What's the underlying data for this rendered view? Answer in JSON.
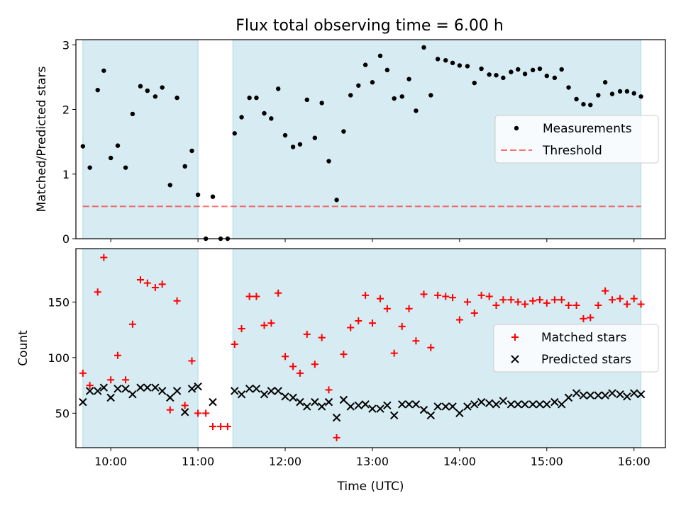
{
  "title": "Flux total observing time = 6.00 h",
  "colors": {
    "band": "#add8e6",
    "measurement": "#000000",
    "threshold": "#ff0000",
    "matched": "#ff0000",
    "predicted": "#000000"
  },
  "chart_data": [
    {
      "type": "scatter",
      "ylabel": "Matched/Predicted stars",
      "ylim": [
        0,
        3.08
      ],
      "yticks": [
        "0",
        "1",
        "2",
        "3"
      ],
      "xlim": [
        9.6,
        16.36
      ],
      "bands": [
        [
          9.68,
          11.0
        ],
        [
          11.4,
          16.08
        ]
      ],
      "legend": {
        "placement": "center-right",
        "entries": [
          "Measurements",
          "Threshold"
        ]
      },
      "threshold": 0.5,
      "series": [
        {
          "name": "Measurements",
          "x": [
            9.68,
            9.76,
            9.85,
            9.92,
            10.0,
            10.08,
            10.17,
            10.25,
            10.34,
            10.42,
            10.51,
            10.59,
            10.68,
            10.76,
            10.85,
            10.93,
            11.0,
            11.09,
            11.17,
            11.26,
            11.34,
            11.42,
            11.5,
            11.59,
            11.67,
            11.76,
            11.84,
            11.92,
            12.0,
            12.09,
            12.17,
            12.25,
            12.34,
            12.42,
            12.5,
            12.59,
            12.67,
            12.75,
            12.84,
            12.92,
            13.0,
            13.09,
            13.17,
            13.25,
            13.34,
            13.42,
            13.5,
            13.59,
            13.67,
            13.75,
            13.84,
            13.92,
            14.0,
            14.09,
            14.17,
            14.25,
            14.34,
            14.42,
            14.5,
            14.59,
            14.67,
            14.75,
            14.84,
            14.92,
            15.0,
            15.09,
            15.17,
            15.25,
            15.34,
            15.42,
            15.5,
            15.59,
            15.67,
            15.75,
            15.84,
            15.92,
            16.0,
            16.08
          ],
          "y": [
            1.43,
            1.1,
            2.3,
            2.6,
            1.25,
            1.44,
            1.1,
            1.93,
            2.36,
            2.29,
            2.2,
            2.34,
            0.83,
            2.18,
            1.12,
            1.36,
            0.68,
            0.0,
            0.65,
            0.0,
            0.0,
            1.63,
            1.88,
            2.18,
            2.18,
            1.94,
            1.86,
            2.32,
            1.6,
            1.42,
            1.46,
            2.15,
            1.56,
            2.1,
            1.2,
            0.6,
            1.66,
            2.22,
            2.37,
            2.69,
            2.42,
            2.83,
            2.61,
            2.17,
            2.2,
            2.47,
            1.98,
            2.96,
            2.22,
            2.78,
            2.76,
            2.72,
            2.68,
            2.67,
            2.41,
            2.63,
            2.54,
            2.53,
            2.49,
            2.58,
            2.62,
            2.55,
            2.61,
            2.63,
            2.52,
            2.49,
            2.62,
            2.34,
            2.16,
            2.08,
            2.07,
            2.22,
            2.42,
            2.24,
            2.28,
            2.28,
            2.25,
            2.2
          ]
        }
      ]
    },
    {
      "type": "scatter",
      "xlabel": "Time (UTC)",
      "ylabel": "Count",
      "ylim": [
        19,
        198
      ],
      "yticks": [
        "50",
        "100",
        "150"
      ],
      "xlim": [
        9.6,
        16.36
      ],
      "xticks": [
        "10:00",
        "11:00",
        "12:00",
        "13:00",
        "14:00",
        "15:00",
        "16:00"
      ],
      "bands": [
        [
          9.68,
          11.0
        ],
        [
          11.4,
          16.08
        ]
      ],
      "legend": {
        "placement": "center-right",
        "entries": [
          "Matched stars",
          "Predicted stars"
        ]
      },
      "series": [
        {
          "name": "Matched stars",
          "x": [
            9.68,
            9.76,
            9.85,
            9.92,
            10.0,
            10.08,
            10.17,
            10.25,
            10.34,
            10.42,
            10.51,
            10.59,
            10.68,
            10.76,
            10.85,
            10.93,
            11.0,
            11.09,
            11.17,
            11.26,
            11.34,
            11.42,
            11.5,
            11.59,
            11.67,
            11.76,
            11.84,
            11.92,
            12.0,
            12.09,
            12.17,
            12.25,
            12.34,
            12.42,
            12.5,
            12.59,
            12.67,
            12.75,
            12.84,
            12.92,
            13.0,
            13.09,
            13.17,
            13.25,
            13.34,
            13.42,
            13.5,
            13.59,
            13.67,
            13.75,
            13.84,
            13.92,
            14.0,
            14.09,
            14.17,
            14.25,
            14.34,
            14.42,
            14.5,
            14.59,
            14.67,
            14.75,
            14.84,
            14.92,
            15.0,
            15.09,
            15.17,
            15.25,
            15.34,
            15.42,
            15.5,
            15.59,
            15.67,
            15.75,
            15.84,
            15.92,
            16.0,
            16.08
          ],
          "y": [
            86,
            75,
            159,
            190,
            80,
            102,
            80,
            130,
            170,
            167,
            163,
            166,
            53,
            151,
            57,
            97,
            50,
            50,
            38,
            38,
            38,
            112,
            126,
            155,
            155,
            129,
            131,
            158,
            101,
            92,
            86,
            121,
            94,
            118,
            71,
            28,
            103,
            127,
            133,
            156,
            131,
            153,
            144,
            104,
            128,
            144,
            115,
            157,
            109,
            156,
            155,
            154,
            134,
            150,
            140,
            156,
            155,
            147,
            152,
            152,
            150,
            148,
            151,
            152,
            149,
            152,
            152,
            147,
            147,
            135,
            136,
            147,
            160,
            152,
            153,
            148,
            153,
            148
          ]
        },
        {
          "name": "Predicted stars",
          "x": [
            9.68,
            9.76,
            9.85,
            9.92,
            10.0,
            10.08,
            10.17,
            10.25,
            10.34,
            10.42,
            10.51,
            10.59,
            10.68,
            10.76,
            10.85,
            10.93,
            11.0,
            11.09,
            11.17,
            11.26,
            11.34,
            11.42,
            11.5,
            11.59,
            11.67,
            11.76,
            11.84,
            11.92,
            12.0,
            12.09,
            12.17,
            12.25,
            12.34,
            12.42,
            12.5,
            12.59,
            12.67,
            12.75,
            12.84,
            12.92,
            13.0,
            13.09,
            13.17,
            13.25,
            13.34,
            13.42,
            13.5,
            13.59,
            13.67,
            13.75,
            13.84,
            13.92,
            14.0,
            14.09,
            14.17,
            14.25,
            14.34,
            14.42,
            14.5,
            14.59,
            14.67,
            14.75,
            14.84,
            14.92,
            15.0,
            15.09,
            15.17,
            15.25,
            15.34,
            15.42,
            15.5,
            15.59,
            15.67,
            15.75,
            15.84,
            15.92,
            16.0,
            16.08
          ],
          "y": [
            60,
            70,
            70,
            73,
            64,
            72,
            72,
            67,
            73,
            73,
            73,
            70,
            64,
            70,
            51,
            72,
            74,
            null,
            60,
            null,
            null,
            70,
            67,
            72,
            72,
            67,
            70,
            70,
            65,
            64,
            60,
            56,
            60,
            56,
            60,
            46,
            62,
            56,
            57,
            58,
            54,
            54,
            57,
            48,
            58,
            58,
            58,
            53,
            48,
            56,
            56,
            56,
            50,
            56,
            58,
            60,
            59,
            58,
            61,
            58,
            58,
            58,
            58,
            58,
            58,
            60,
            58,
            64,
            68,
            66,
            66,
            66,
            66,
            68,
            67,
            65,
            68,
            67
          ]
        }
      ]
    }
  ]
}
